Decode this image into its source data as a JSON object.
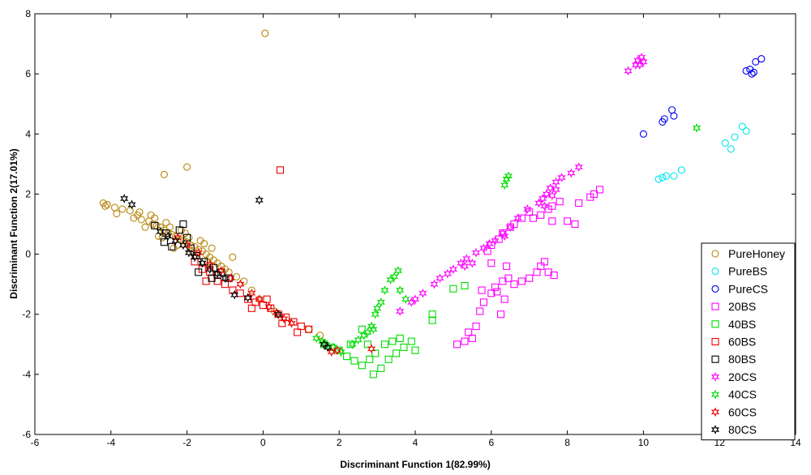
{
  "chart_data": {
    "type": "scatter",
    "xlabel": "Discriminant Function 1(82.99%)",
    "ylabel": "Discriminant Function 2(17.01%)",
    "xlim": [
      -6,
      14
    ],
    "ylim": [
      -6,
      8
    ],
    "xticks": [
      -6,
      -4,
      -2,
      0,
      2,
      4,
      6,
      8,
      10,
      12,
      14
    ],
    "yticks": [
      -6,
      -4,
      -2,
      0,
      2,
      4,
      6,
      8
    ],
    "grid": false,
    "legend_position": "bottom-right",
    "series": [
      {
        "name": "PureHoney",
        "marker": "circle",
        "color": "#b8860b",
        "points": [
          [
            0.05,
            7.35
          ],
          [
            -2.0,
            2.9
          ],
          [
            -2.6,
            2.65
          ],
          [
            -4.2,
            1.7
          ],
          [
            -4.1,
            1.65
          ],
          [
            -4.15,
            1.6
          ],
          [
            -3.9,
            1.55
          ],
          [
            -3.7,
            1.5
          ],
          [
            -3.85,
            1.35
          ],
          [
            -3.5,
            1.45
          ],
          [
            -3.3,
            1.3
          ],
          [
            -3.2,
            1.15
          ],
          [
            -3.0,
            1.1
          ],
          [
            -2.9,
            1.0
          ],
          [
            -2.8,
            0.95
          ],
          [
            -2.7,
            0.9
          ],
          [
            -2.6,
            0.8
          ],
          [
            -2.5,
            0.7
          ],
          [
            -2.4,
            0.65
          ],
          [
            -2.3,
            0.6
          ],
          [
            -2.2,
            0.5
          ],
          [
            -2.1,
            0.45
          ],
          [
            -2.0,
            0.4
          ],
          [
            -1.9,
            0.3
          ],
          [
            -1.8,
            0.25
          ],
          [
            -1.7,
            0.15
          ],
          [
            -1.6,
            0.1
          ],
          [
            -1.5,
            0.0
          ],
          [
            -1.4,
            -0.1
          ],
          [
            -1.3,
            -0.2
          ],
          [
            -1.2,
            -0.3
          ],
          [
            -1.1,
            -0.4
          ],
          [
            -1.0,
            -0.5
          ],
          [
            -0.9,
            -0.6
          ],
          [
            -0.8,
            -0.1
          ],
          [
            -0.7,
            -0.75
          ],
          [
            -0.5,
            -0.9
          ],
          [
            -2.85,
            1.2
          ],
          [
            -2.65,
            0.55
          ],
          [
            -2.45,
            0.9
          ],
          [
            -2.25,
            0.3
          ],
          [
            -2.05,
            0.7
          ],
          [
            -1.85,
            0.05
          ],
          [
            -1.65,
            0.45
          ],
          [
            -1.45,
            -0.25
          ],
          [
            -3.1,
            0.9
          ],
          [
            -2.95,
            1.3
          ],
          [
            -2.75,
            0.6
          ],
          [
            -2.55,
            1.05
          ],
          [
            -2.35,
            0.2
          ],
          [
            -2.15,
            0.8
          ],
          [
            -1.95,
            0.55
          ],
          [
            -1.75,
            -0.05
          ],
          [
            -1.55,
            0.35
          ],
          [
            -1.35,
            0.2
          ],
          [
            -3.4,
            1.2
          ],
          [
            -3.25,
            1.4
          ],
          [
            1.5,
            -2.7
          ],
          [
            1.2,
            -2.5
          ],
          [
            -0.3,
            -1.2
          ],
          [
            -0.1,
            -1.5
          ],
          [
            0.3,
            -1.9
          ]
        ]
      },
      {
        "name": "PureBS",
        "marker": "circle",
        "color": "#00e5ee",
        "points": [
          [
            12.6,
            4.25
          ],
          [
            12.7,
            4.1
          ],
          [
            12.4,
            3.9
          ],
          [
            12.15,
            3.7
          ],
          [
            12.3,
            3.5
          ],
          [
            11.0,
            2.8
          ],
          [
            10.8,
            2.6
          ],
          [
            10.6,
            2.6
          ],
          [
            10.5,
            2.55
          ],
          [
            10.4,
            2.5
          ]
        ]
      },
      {
        "name": "PureCS",
        "marker": "circle",
        "color": "#0000ee",
        "points": [
          [
            13.1,
            6.5
          ],
          [
            12.95,
            6.4
          ],
          [
            12.7,
            6.1
          ],
          [
            12.8,
            6.15
          ],
          [
            12.9,
            6.05
          ],
          [
            12.85,
            6.0
          ],
          [
            10.75,
            4.8
          ],
          [
            10.8,
            4.6
          ],
          [
            10.55,
            4.5
          ],
          [
            10.5,
            4.4
          ],
          [
            10.0,
            4.0
          ]
        ]
      },
      {
        "name": "20BS",
        "marker": "square",
        "color": "#ff00ff",
        "points": [
          [
            8.85,
            2.15
          ],
          [
            8.7,
            2.0
          ],
          [
            8.3,
            1.7
          ],
          [
            8.6,
            1.9
          ],
          [
            7.8,
            1.75
          ],
          [
            7.6,
            1.6
          ],
          [
            7.5,
            1.5
          ],
          [
            7.3,
            1.3
          ],
          [
            7.1,
            1.2
          ],
          [
            7.6,
            1.1
          ],
          [
            8.2,
            1.0
          ],
          [
            8.0,
            1.1
          ],
          [
            6.6,
            1.0
          ],
          [
            6.8,
            1.2
          ],
          [
            7.0,
            1.4
          ],
          [
            6.5,
            0.9
          ],
          [
            6.3,
            0.7
          ],
          [
            6.2,
            0.5
          ],
          [
            6.0,
            0.3
          ],
          [
            5.9,
            0.1
          ],
          [
            7.4,
            -0.25
          ],
          [
            7.3,
            -0.4
          ],
          [
            7.2,
            -0.6
          ],
          [
            7.0,
            -0.8
          ],
          [
            6.8,
            -0.9
          ],
          [
            6.6,
            -1.0
          ],
          [
            7.65,
            -0.7
          ],
          [
            7.5,
            -0.6
          ],
          [
            6.45,
            -0.8
          ],
          [
            6.3,
            -0.9
          ],
          [
            6.1,
            -1.1
          ],
          [
            6.0,
            -1.3
          ],
          [
            5.8,
            -1.6
          ],
          [
            5.7,
            -1.9
          ],
          [
            5.6,
            -2.4
          ],
          [
            5.5,
            -2.8
          ],
          [
            5.3,
            -2.9
          ],
          [
            5.1,
            -3.0
          ],
          [
            5.4,
            -2.6
          ],
          [
            5.75,
            -1.2
          ],
          [
            6.15,
            -1.25
          ],
          [
            6.35,
            -1.5
          ],
          [
            6.25,
            -2.0
          ],
          [
            6.0,
            -0.3
          ],
          [
            6.4,
            -0.4
          ]
        ]
      },
      {
        "name": "40BS",
        "marker": "square",
        "color": "#00dd00",
        "points": [
          [
            1.6,
            -3.0
          ],
          [
            1.8,
            -3.1
          ],
          [
            2.0,
            -3.2
          ],
          [
            2.2,
            -3.4
          ],
          [
            2.4,
            -3.55
          ],
          [
            2.6,
            -3.7
          ],
          [
            2.9,
            -4.0
          ],
          [
            3.1,
            -3.8
          ],
          [
            3.3,
            -3.5
          ],
          [
            3.5,
            -3.3
          ],
          [
            3.7,
            -3.1
          ],
          [
            3.9,
            -2.9
          ],
          [
            2.6,
            -2.5
          ],
          [
            2.75,
            -3.0
          ],
          [
            2.95,
            -3.3
          ],
          [
            3.2,
            -3.0
          ],
          [
            3.4,
            -2.9
          ],
          [
            3.6,
            -2.8
          ],
          [
            4.0,
            -3.2
          ],
          [
            4.45,
            -2.0
          ],
          [
            4.45,
            -2.2
          ],
          [
            5.0,
            -1.15
          ],
          [
            5.3,
            -1.05
          ],
          [
            2.3,
            -3.0
          ],
          [
            2.8,
            -3.5
          ]
        ]
      },
      {
        "name": "60BS",
        "marker": "square",
        "color": "#ee0000",
        "points": [
          [
            0.45,
            2.8
          ],
          [
            -1.8,
            -0.25
          ],
          [
            -1.6,
            -0.5
          ],
          [
            -1.4,
            -0.6
          ],
          [
            -1.2,
            -0.9
          ],
          [
            -1.0,
            -1.0
          ],
          [
            -0.8,
            -1.2
          ],
          [
            -0.6,
            -1.3
          ],
          [
            -0.4,
            -1.5
          ],
          [
            -0.2,
            -1.6
          ],
          [
            0.0,
            -1.7
          ],
          [
            0.2,
            -1.8
          ],
          [
            0.4,
            -2.0
          ],
          [
            0.6,
            -2.1
          ],
          [
            0.8,
            -2.25
          ],
          [
            1.0,
            -2.4
          ],
          [
            1.2,
            -2.5
          ],
          [
            0.1,
            -1.5
          ],
          [
            0.5,
            -2.3
          ],
          [
            -0.3,
            -1.8
          ],
          [
            0.9,
            -2.6
          ],
          [
            -1.5,
            -0.9
          ]
        ]
      },
      {
        "name": "80BS",
        "marker": "square",
        "color": "#000000",
        "points": [
          [
            -2.85,
            0.95
          ],
          [
            -2.55,
            0.7
          ],
          [
            -2.2,
            0.8
          ],
          [
            -2.0,
            0.55
          ],
          [
            -2.4,
            0.25
          ],
          [
            -1.9,
            0.2
          ],
          [
            -1.75,
            -0.05
          ],
          [
            -1.55,
            -0.25
          ],
          [
            -1.3,
            -0.45
          ],
          [
            -1.1,
            -0.6
          ],
          [
            -0.9,
            -0.8
          ],
          [
            -1.35,
            -0.8
          ],
          [
            -2.1,
            1.0
          ],
          [
            -1.7,
            -0.6
          ],
          [
            -2.6,
            0.4
          ],
          [
            -1.2,
            -0.7
          ]
        ]
      },
      {
        "name": "20CS",
        "marker": "star",
        "color": "#ff00ff",
        "points": [
          [
            9.95,
            6.55
          ],
          [
            9.85,
            6.45
          ],
          [
            10.0,
            6.4
          ],
          [
            9.9,
            6.3
          ],
          [
            9.8,
            6.3
          ],
          [
            9.6,
            6.1
          ],
          [
            8.3,
            2.9
          ],
          [
            8.1,
            2.7
          ],
          [
            7.85,
            2.55
          ],
          [
            7.7,
            2.4
          ],
          [
            7.55,
            2.2
          ],
          [
            7.45,
            2.0
          ],
          [
            7.35,
            1.85
          ],
          [
            7.25,
            1.7
          ],
          [
            7.6,
            1.95
          ],
          [
            7.7,
            2.15
          ],
          [
            6.95,
            1.5
          ],
          [
            6.7,
            1.2
          ],
          [
            6.5,
            0.9
          ],
          [
            6.3,
            0.7
          ],
          [
            6.1,
            0.45
          ],
          [
            5.95,
            0.35
          ],
          [
            5.8,
            0.2
          ],
          [
            5.6,
            0.05
          ],
          [
            5.35,
            -0.15
          ],
          [
            5.2,
            -0.3
          ],
          [
            5.0,
            -0.5
          ],
          [
            4.85,
            -0.65
          ],
          [
            4.5,
            -1.0
          ],
          [
            4.2,
            -1.3
          ],
          [
            3.9,
            -1.6
          ],
          [
            3.6,
            -1.9
          ],
          [
            5.3,
            -0.4
          ],
          [
            5.5,
            -0.3
          ],
          [
            4.65,
            -0.8
          ],
          [
            6.35,
            0.6
          ],
          [
            7.4,
            1.6
          ],
          [
            4.0,
            -1.5
          ]
        ]
      },
      {
        "name": "40CS",
        "marker": "star",
        "color": "#00dd00",
        "points": [
          [
            11.4,
            4.2
          ],
          [
            6.45,
            2.6
          ],
          [
            6.4,
            2.5
          ],
          [
            6.35,
            2.3
          ],
          [
            3.55,
            -0.55
          ],
          [
            3.45,
            -0.75
          ],
          [
            3.35,
            -0.85
          ],
          [
            3.2,
            -1.2
          ],
          [
            3.1,
            -1.6
          ],
          [
            2.95,
            -2.0
          ],
          [
            2.85,
            -2.4
          ],
          [
            2.75,
            -2.6
          ],
          [
            2.65,
            -2.7
          ],
          [
            2.5,
            -2.85
          ],
          [
            2.35,
            -3.0
          ],
          [
            1.55,
            -2.9
          ],
          [
            1.4,
            -2.8
          ],
          [
            1.65,
            -3.0
          ],
          [
            1.85,
            -3.1
          ],
          [
            2.05,
            -3.25
          ],
          [
            3.0,
            -1.8
          ],
          [
            3.6,
            -1.2
          ],
          [
            3.75,
            -1.5
          ],
          [
            2.9,
            -2.5
          ]
        ]
      },
      {
        "name": "60CS",
        "marker": "star",
        "color": "#ee0000",
        "points": [
          [
            2.85,
            -3.15
          ],
          [
            1.8,
            -3.25
          ],
          [
            1.95,
            -3.2
          ],
          [
            -0.3,
            -1.3
          ],
          [
            -0.1,
            -1.5
          ],
          [
            0.15,
            -1.75
          ],
          [
            0.35,
            -1.95
          ],
          [
            0.55,
            -2.15
          ],
          [
            0.75,
            -2.3
          ],
          [
            -0.6,
            -1.0
          ],
          [
            -0.85,
            -0.8
          ],
          [
            -1.1,
            -0.55
          ],
          [
            -1.4,
            -0.35
          ],
          [
            -1.7,
            0.05
          ],
          [
            -2.0,
            0.3
          ],
          [
            -2.25,
            0.55
          ]
        ]
      },
      {
        "name": "80CS",
        "marker": "star",
        "color": "#000000",
        "points": [
          [
            -3.65,
            1.85
          ],
          [
            -3.45,
            1.65
          ],
          [
            -0.1,
            1.8
          ],
          [
            -0.75,
            -1.35
          ],
          [
            -2.7,
            0.75
          ],
          [
            -2.5,
            0.6
          ],
          [
            -2.3,
            0.45
          ],
          [
            -2.1,
            0.3
          ],
          [
            -1.95,
            0.05
          ],
          [
            -1.8,
            -0.1
          ],
          [
            -1.6,
            -0.3
          ],
          [
            -1.4,
            -0.5
          ],
          [
            -1.2,
            -0.65
          ],
          [
            -1.0,
            -0.8
          ],
          [
            -0.4,
            -1.45
          ],
          [
            0.4,
            -2.0
          ],
          [
            1.6,
            -3.0
          ],
          [
            1.7,
            -3.1
          ]
        ]
      }
    ]
  }
}
